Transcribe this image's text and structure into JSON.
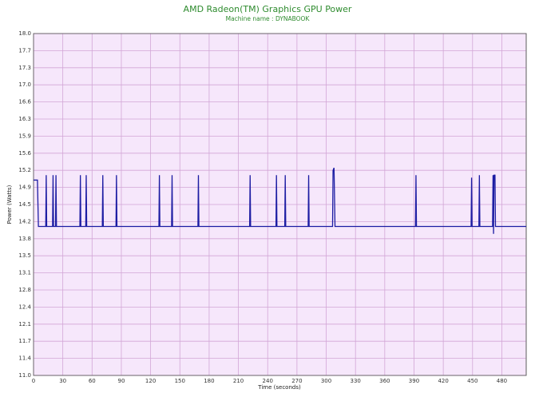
{
  "chart_data": {
    "type": "line",
    "title": "AMD Radeon(TM) Graphics GPU Power",
    "subtitle": "Machine name : DYNABOOK",
    "x_label": "Time (seconds)",
    "y_label": "Power (Watts)",
    "grid": true,
    "xlim": [
      0,
      505
    ],
    "ylim": [
      11.0,
      18.0
    ],
    "xticks": [
      0,
      30,
      60,
      90,
      120,
      150,
      180,
      210,
      240,
      270,
      300,
      330,
      360,
      390,
      420,
      450,
      480
    ],
    "yticks": [
      {
        "value": 11.0,
        "label": "11.0"
      },
      {
        "value": 11.35,
        "label": "11.4"
      },
      {
        "value": 11.7,
        "label": "11.7"
      },
      {
        "value": 12.05,
        "label": "12.1"
      },
      {
        "value": 12.4,
        "label": "12.4"
      },
      {
        "value": 12.75,
        "label": "12.8"
      },
      {
        "value": 13.1,
        "label": "13.1"
      },
      {
        "value": 13.45,
        "label": "13.5"
      },
      {
        "value": 13.8,
        "label": "13.8"
      },
      {
        "value": 14.15,
        "label": "14.2"
      },
      {
        "value": 14.5,
        "label": "14.5"
      },
      {
        "value": 14.85,
        "label": "14.9"
      },
      {
        "value": 15.2,
        "label": "15.2"
      },
      {
        "value": 15.55,
        "label": "15.6"
      },
      {
        "value": 15.9,
        "label": "15.9"
      },
      {
        "value": 16.25,
        "label": "16.3"
      },
      {
        "value": 16.6,
        "label": "16.6"
      },
      {
        "value": 16.95,
        "label": "17.0"
      },
      {
        "value": 17.3,
        "label": "17.3"
      },
      {
        "value": 17.65,
        "label": "17.7"
      },
      {
        "value": 18.0,
        "label": "18.0"
      }
    ],
    "x": [
      0,
      4,
      5,
      12.5,
      13,
      13.5,
      19.5,
      20,
      20.5,
      22.5,
      23,
      23.5,
      47.5,
      48,
      48.5,
      53.5,
      54,
      54.5,
      70.5,
      71,
      71.5,
      84.5,
      85,
      85.5,
      128.5,
      129,
      129.5,
      141.5,
      142,
      142.5,
      168.5,
      169,
      169.5,
      221.5,
      222,
      222.5,
      248.5,
      249,
      249.5,
      257.5,
      258,
      258.5,
      281.5,
      282,
      282.5,
      306.5,
      307,
      308,
      309,
      391.5,
      392,
      392.5,
      448.5,
      449,
      449.5,
      456.5,
      457,
      457.5,
      470.5,
      471,
      471.5,
      472,
      473,
      473.5,
      505
    ],
    "series": [
      {
        "name": "GPU Power",
        "color": "#1c1ca3",
        "values": [
          15.0,
          15.0,
          14.05,
          14.05,
          15.1,
          14.05,
          14.05,
          15.1,
          14.05,
          14.05,
          15.1,
          14.05,
          14.05,
          15.1,
          14.05,
          14.05,
          15.1,
          14.05,
          14.05,
          15.1,
          14.05,
          14.05,
          15.1,
          14.05,
          14.05,
          15.1,
          14.05,
          14.05,
          15.1,
          14.05,
          14.05,
          15.1,
          14.05,
          14.05,
          15.1,
          14.05,
          14.05,
          15.1,
          14.05,
          14.05,
          15.1,
          14.05,
          14.05,
          15.1,
          14.05,
          14.05,
          15.2,
          15.25,
          14.05,
          14.05,
          15.1,
          14.05,
          14.05,
          15.05,
          14.05,
          14.05,
          15.1,
          14.05,
          14.05,
          15.1,
          13.9,
          15.1,
          15.1,
          14.05,
          14.05
        ]
      }
    ]
  }
}
